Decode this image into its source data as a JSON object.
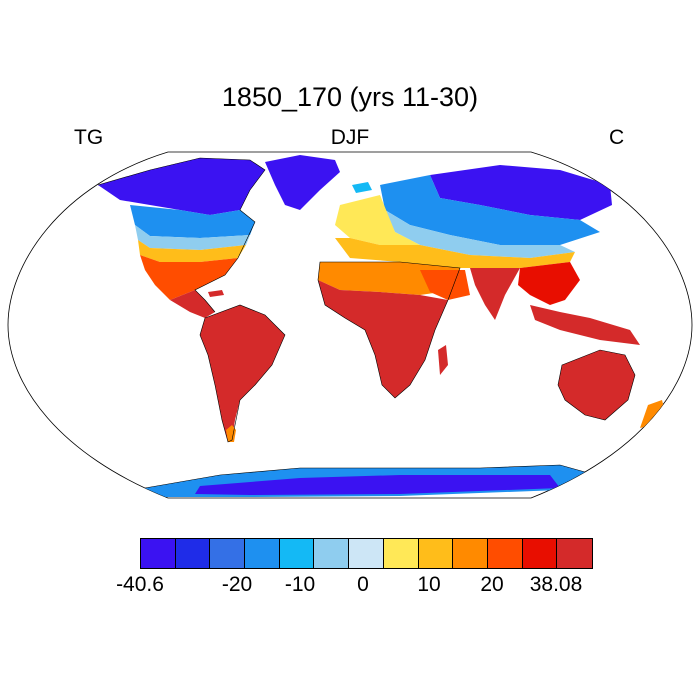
{
  "title": "1850_170 (yrs 11-30)",
  "left_label": "TG",
  "center_label": "DJF",
  "right_label": "C",
  "colorbar": {
    "colors": [
      "#3b12f2",
      "#1f2ce8",
      "#3470e6",
      "#1e90f0",
      "#14b9f5",
      "#8fcdef",
      "#cde6f6",
      "#ffe857",
      "#ffbd1a",
      "#ff8a00",
      "#ff4d00",
      "#e80e00",
      "#d42a2a"
    ],
    "tick_labels": [
      "-40.6",
      "-20",
      "-10",
      "0",
      "10",
      "20",
      "38.08"
    ]
  },
  "palette": {
    "polar": "#3b12f2",
    "cold": "#1f2ce8",
    "cool": "#3470e6",
    "mild_cold": "#1e90f0",
    "cyan": "#14b9f5",
    "light_blue": "#8fcdef",
    "pale": "#cde6f6",
    "yellow": "#ffe857",
    "amber": "#ffbd1a",
    "orange": "#ff8a00",
    "red_orange": "#ff4d00",
    "red": "#e80e00",
    "hot": "#d42a2a"
  }
}
